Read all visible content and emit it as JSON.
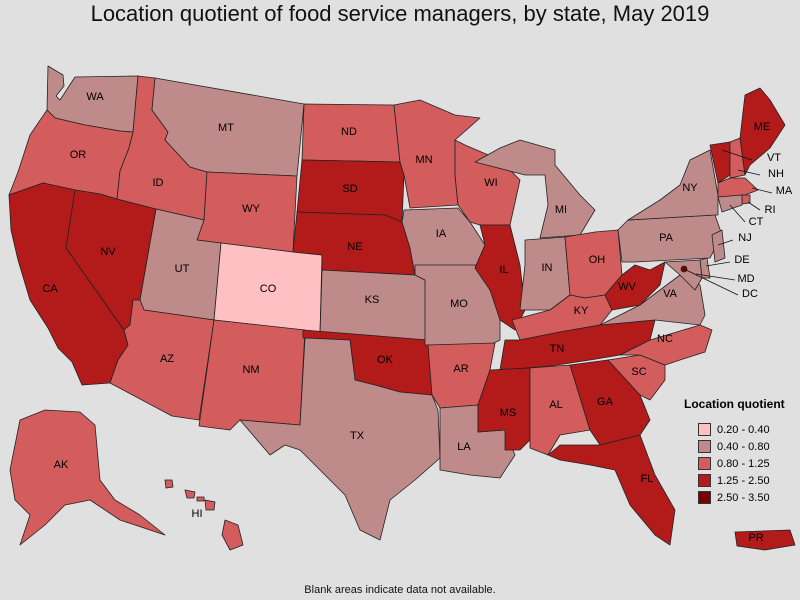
{
  "title": "Location quotient of food service managers, by state, May 2019",
  "footnote": "Blank areas indicate data not available.",
  "legend": {
    "title": "Location quotient",
    "items": [
      {
        "label": "0.20 - 0.40",
        "color": "#ffc0c4"
      },
      {
        "label": "0.40 - 0.80",
        "color": "#bf8a8a"
      },
      {
        "label": "0.80 - 1.25",
        "color": "#d35c5c"
      },
      {
        "label": "1.25 - 2.50",
        "color": "#b31b1b"
      },
      {
        "label": "2.50 - 3.50",
        "color": "#7a0000"
      }
    ]
  },
  "states": {
    "WA": {
      "label": "WA",
      "class": 1
    },
    "OR": {
      "label": "OR",
      "class": 2
    },
    "CA": {
      "label": "CA",
      "class": 3
    },
    "NV": {
      "label": "NV",
      "class": 3
    },
    "ID": {
      "label": "ID",
      "class": 2
    },
    "MT": {
      "label": "MT",
      "class": 1
    },
    "WY": {
      "label": "WY",
      "class": 2
    },
    "UT": {
      "label": "UT",
      "class": 1
    },
    "AZ": {
      "label": "AZ",
      "class": 2
    },
    "CO": {
      "label": "CO",
      "class": 0
    },
    "NM": {
      "label": "NM",
      "class": 2
    },
    "ND": {
      "label": "ND",
      "class": 2
    },
    "SD": {
      "label": "SD",
      "class": 3
    },
    "NE": {
      "label": "NE",
      "class": 3
    },
    "KS": {
      "label": "KS",
      "class": 1
    },
    "OK": {
      "label": "OK",
      "class": 3
    },
    "TX": {
      "label": "TX",
      "class": 1
    },
    "MN": {
      "label": "MN",
      "class": 2
    },
    "IA": {
      "label": "IA",
      "class": 1
    },
    "MO": {
      "label": "MO",
      "class": 1
    },
    "AR": {
      "label": "AR",
      "class": 2
    },
    "LA": {
      "label": "LA",
      "class": 1
    },
    "WI": {
      "label": "WI",
      "class": 2
    },
    "IL": {
      "label": "IL",
      "class": 3
    },
    "MI": {
      "label": "MI",
      "class": 1
    },
    "IN": {
      "label": "IN",
      "class": 1
    },
    "OH": {
      "label": "OH",
      "class": 2
    },
    "KY": {
      "label": "KY",
      "class": 2
    },
    "TN": {
      "label": "TN",
      "class": 3
    },
    "MS": {
      "label": "MS",
      "class": 3
    },
    "AL": {
      "label": "AL",
      "class": 2
    },
    "GA": {
      "label": "GA",
      "class": 3
    },
    "FL": {
      "label": "FL",
      "class": 3
    },
    "SC": {
      "label": "SC",
      "class": 2
    },
    "NC": {
      "label": "NC",
      "class": 2
    },
    "VA": {
      "label": "VA",
      "class": 1
    },
    "WV": {
      "label": "WV",
      "class": 3
    },
    "PA": {
      "label": "PA",
      "class": 1
    },
    "NY": {
      "label": "NY",
      "class": 1
    },
    "ME": {
      "label": "ME",
      "class": 3
    },
    "VT": {
      "label": "VT",
      "class": 3
    },
    "NH": {
      "label": "NH",
      "class": 2
    },
    "MA": {
      "label": "MA",
      "class": 2
    },
    "RI": {
      "label": "RI",
      "class": 2
    },
    "CT": {
      "label": "CT",
      "class": 1
    },
    "NJ": {
      "label": "NJ",
      "class": 1
    },
    "DE": {
      "label": "DE",
      "class": 1
    },
    "MD": {
      "label": "MD",
      "class": 1
    },
    "DC": {
      "label": "DC",
      "class": 4
    },
    "AK": {
      "label": "AK",
      "class": 2
    },
    "HI": {
      "label": "HI",
      "class": 2
    },
    "PR": {
      "label": "PR",
      "class": 3
    }
  }
}
